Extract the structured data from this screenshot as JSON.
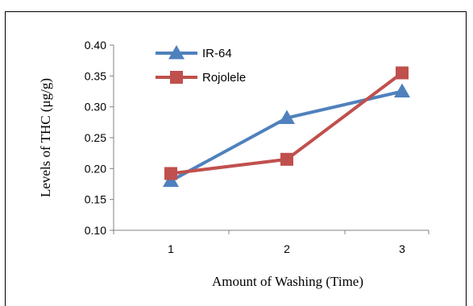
{
  "chart_data": {
    "type": "line",
    "x": [
      1,
      2,
      3
    ],
    "series": [
      {
        "name": "IR-64",
        "values": [
          0.18,
          0.282,
          0.325
        ],
        "color": "#4F81BD",
        "marker": "triangle"
      },
      {
        "name": "Rojolele",
        "values": [
          0.192,
          0.215,
          0.355
        ],
        "color": "#C0504D",
        "marker": "square"
      }
    ],
    "xlabel": "Amount of  Washing (Time)",
    "ylabel": "Levels of  THC (μg/g)",
    "ylim": [
      0.1,
      0.4
    ],
    "yticks": [
      "0.10",
      "0.15",
      "0.20",
      "0.25",
      "0.30",
      "0.35",
      "0.40"
    ],
    "xticks": [
      "1",
      "2",
      "3"
    ],
    "grid": false,
    "legend": "top-left"
  }
}
